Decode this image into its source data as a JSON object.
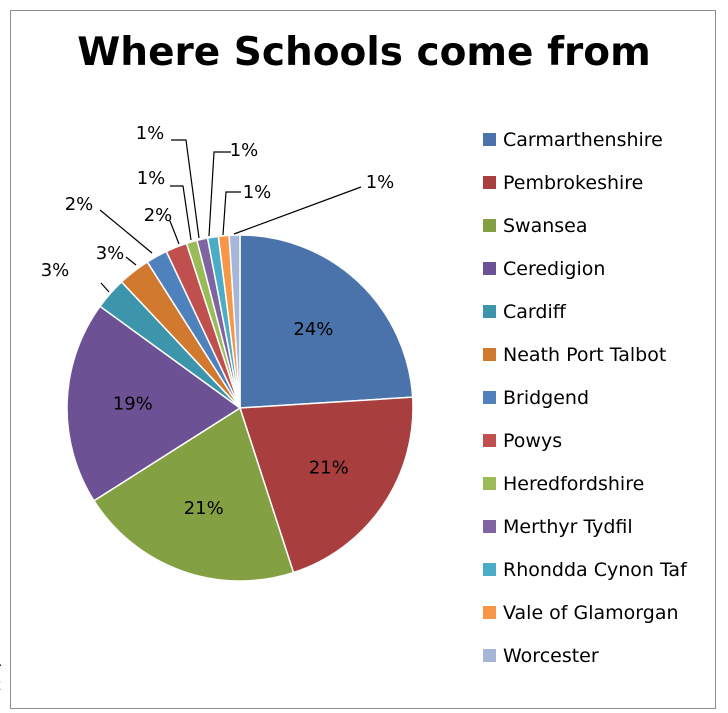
{
  "edge_text": [
    "r",
    "t"
  ],
  "chart_data": {
    "type": "pie",
    "title": "Where Schools come from",
    "legend_position": "right",
    "slices": [
      {
        "label": "Carmarthenshire",
        "value": 24,
        "value_label": "24%",
        "color": "#4a73ab"
      },
      {
        "label": "Pembrokeshire",
        "value": 21,
        "value_label": "21%",
        "color": "#a83e3e"
      },
      {
        "label": "Swansea",
        "value": 21,
        "value_label": "21%",
        "color": "#83a042"
      },
      {
        "label": "Ceredigion",
        "value": 19,
        "value_label": "19%",
        "color": "#6d5195"
      },
      {
        "label": "Cardiff",
        "value": 3,
        "value_label": "3%",
        "color": "#3c95ab"
      },
      {
        "label": "Neath Port Talbot",
        "value": 3,
        "value_label": "3%",
        "color": "#d1792f"
      },
      {
        "label": "Bridgend",
        "value": 2,
        "value_label": "2%",
        "color": "#4f81bd"
      },
      {
        "label": "Powys",
        "value": 2,
        "value_label": "2%",
        "color": "#c0504d"
      },
      {
        "label": "Heredfordshire",
        "value": 1,
        "value_label": "1%",
        "color": "#9bbb59"
      },
      {
        "label": "Merthyr Tydfil",
        "value": 1,
        "value_label": "1%",
        "color": "#8064a2"
      },
      {
        "label": "Rhondda Cynon Taf",
        "value": 1,
        "value_label": "1%",
        "color": "#4bacc6"
      },
      {
        "label": "Vale of Glamorgan",
        "value": 1,
        "value_label": "1%",
        "color": "#f79646"
      },
      {
        "label": "Worcester",
        "value": 1,
        "value_label": "1%",
        "color": "#a5b6d8"
      }
    ]
  }
}
